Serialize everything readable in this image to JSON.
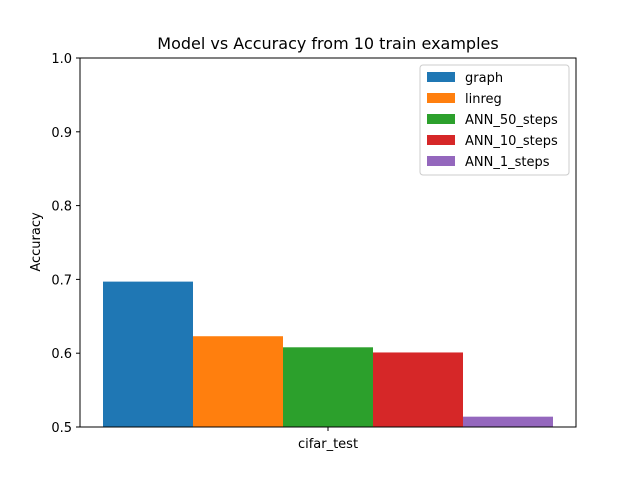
{
  "chart_data": {
    "type": "bar",
    "title": "Model vs Accuracy from 10 train examples",
    "xlabel": "",
    "ylabel": "Accuracy",
    "categories": [
      "cifar_test"
    ],
    "ylim": [
      0.5,
      1.0
    ],
    "yticks": [
      "0.5",
      "0.6",
      "0.7",
      "0.8",
      "0.9",
      "1.0"
    ],
    "grid": false,
    "legend_position": "top-right",
    "series": [
      {
        "name": "graph",
        "values": [
          0.697
        ],
        "color": "#1f77b4"
      },
      {
        "name": "linreg",
        "values": [
          0.623
        ],
        "color": "#ff7f0e"
      },
      {
        "name": "ANN_50_steps",
        "values": [
          0.608
        ],
        "color": "#2ca02c"
      },
      {
        "name": "ANN_10_steps",
        "values": [
          0.601
        ],
        "color": "#d62728"
      },
      {
        "name": "ANN_1_steps",
        "values": [
          0.514
        ],
        "color": "#9467bd"
      }
    ]
  }
}
